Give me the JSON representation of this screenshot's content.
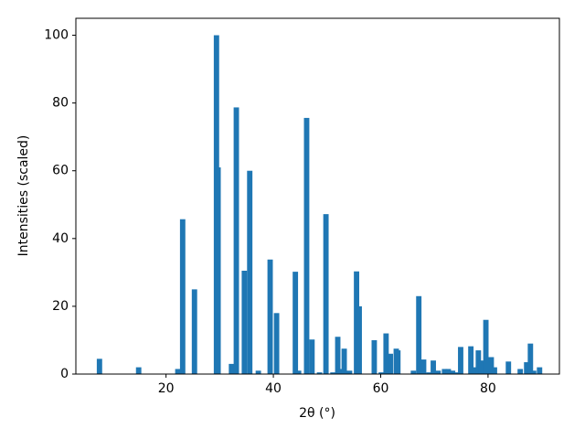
{
  "chart_data": {
    "type": "bar",
    "x_label": "2θ (°)",
    "y_label": "Intensities (scaled)",
    "color": "#1f77b4",
    "x": [
      7.6,
      14.9,
      22.2,
      23.1,
      25.3,
      29.4,
      29.7,
      32.2,
      33.1,
      34.6,
      35.6,
      37.2,
      39.4,
      40.6,
      44.1,
      44.7,
      46.2,
      47.2,
      48.6,
      49.8,
      51.1,
      52.0,
      52.3,
      53.2,
      54.2,
      55.5,
      56.0,
      58.8,
      60.1,
      61.0,
      61.8,
      62.9,
      63.2,
      66.1,
      67.1,
      68.0,
      69.0,
      69.8,
      70.7,
      71.9,
      72.6,
      73.4,
      74.1,
      74.9,
      76.8,
      77.5,
      78.2,
      78.7,
      79.6,
      80.6,
      81.2,
      83.8,
      86.0,
      87.2,
      87.9,
      88.5,
      89.6
    ],
    "values": [
      4.5,
      2,
      1.5,
      45.7,
      25,
      100,
      61,
      3,
      78.7,
      30.5,
      60,
      1,
      33.8,
      18,
      30.2,
      1,
      75.6,
      10.2,
      0.5,
      47.2,
      0.5,
      11,
      1.5,
      7.5,
      1,
      30.3,
      20,
      10,
      0.5,
      12,
      6,
      7.5,
      7,
      1,
      23,
      4.3,
      0.5,
      4,
      1,
      1.5,
      1.5,
      1,
      0.5,
      8,
      8.2,
      2,
      7,
      4,
      16,
      5,
      2,
      3.7,
      1.5,
      3.5,
      9,
      1,
      2
    ],
    "xlim": [
      3.2,
      93.3
    ],
    "ylim": [
      0,
      105
    ],
    "xticks": [
      20,
      40,
      60,
      80
    ],
    "yticks": [
      0,
      20,
      40,
      60,
      80,
      100
    ]
  }
}
